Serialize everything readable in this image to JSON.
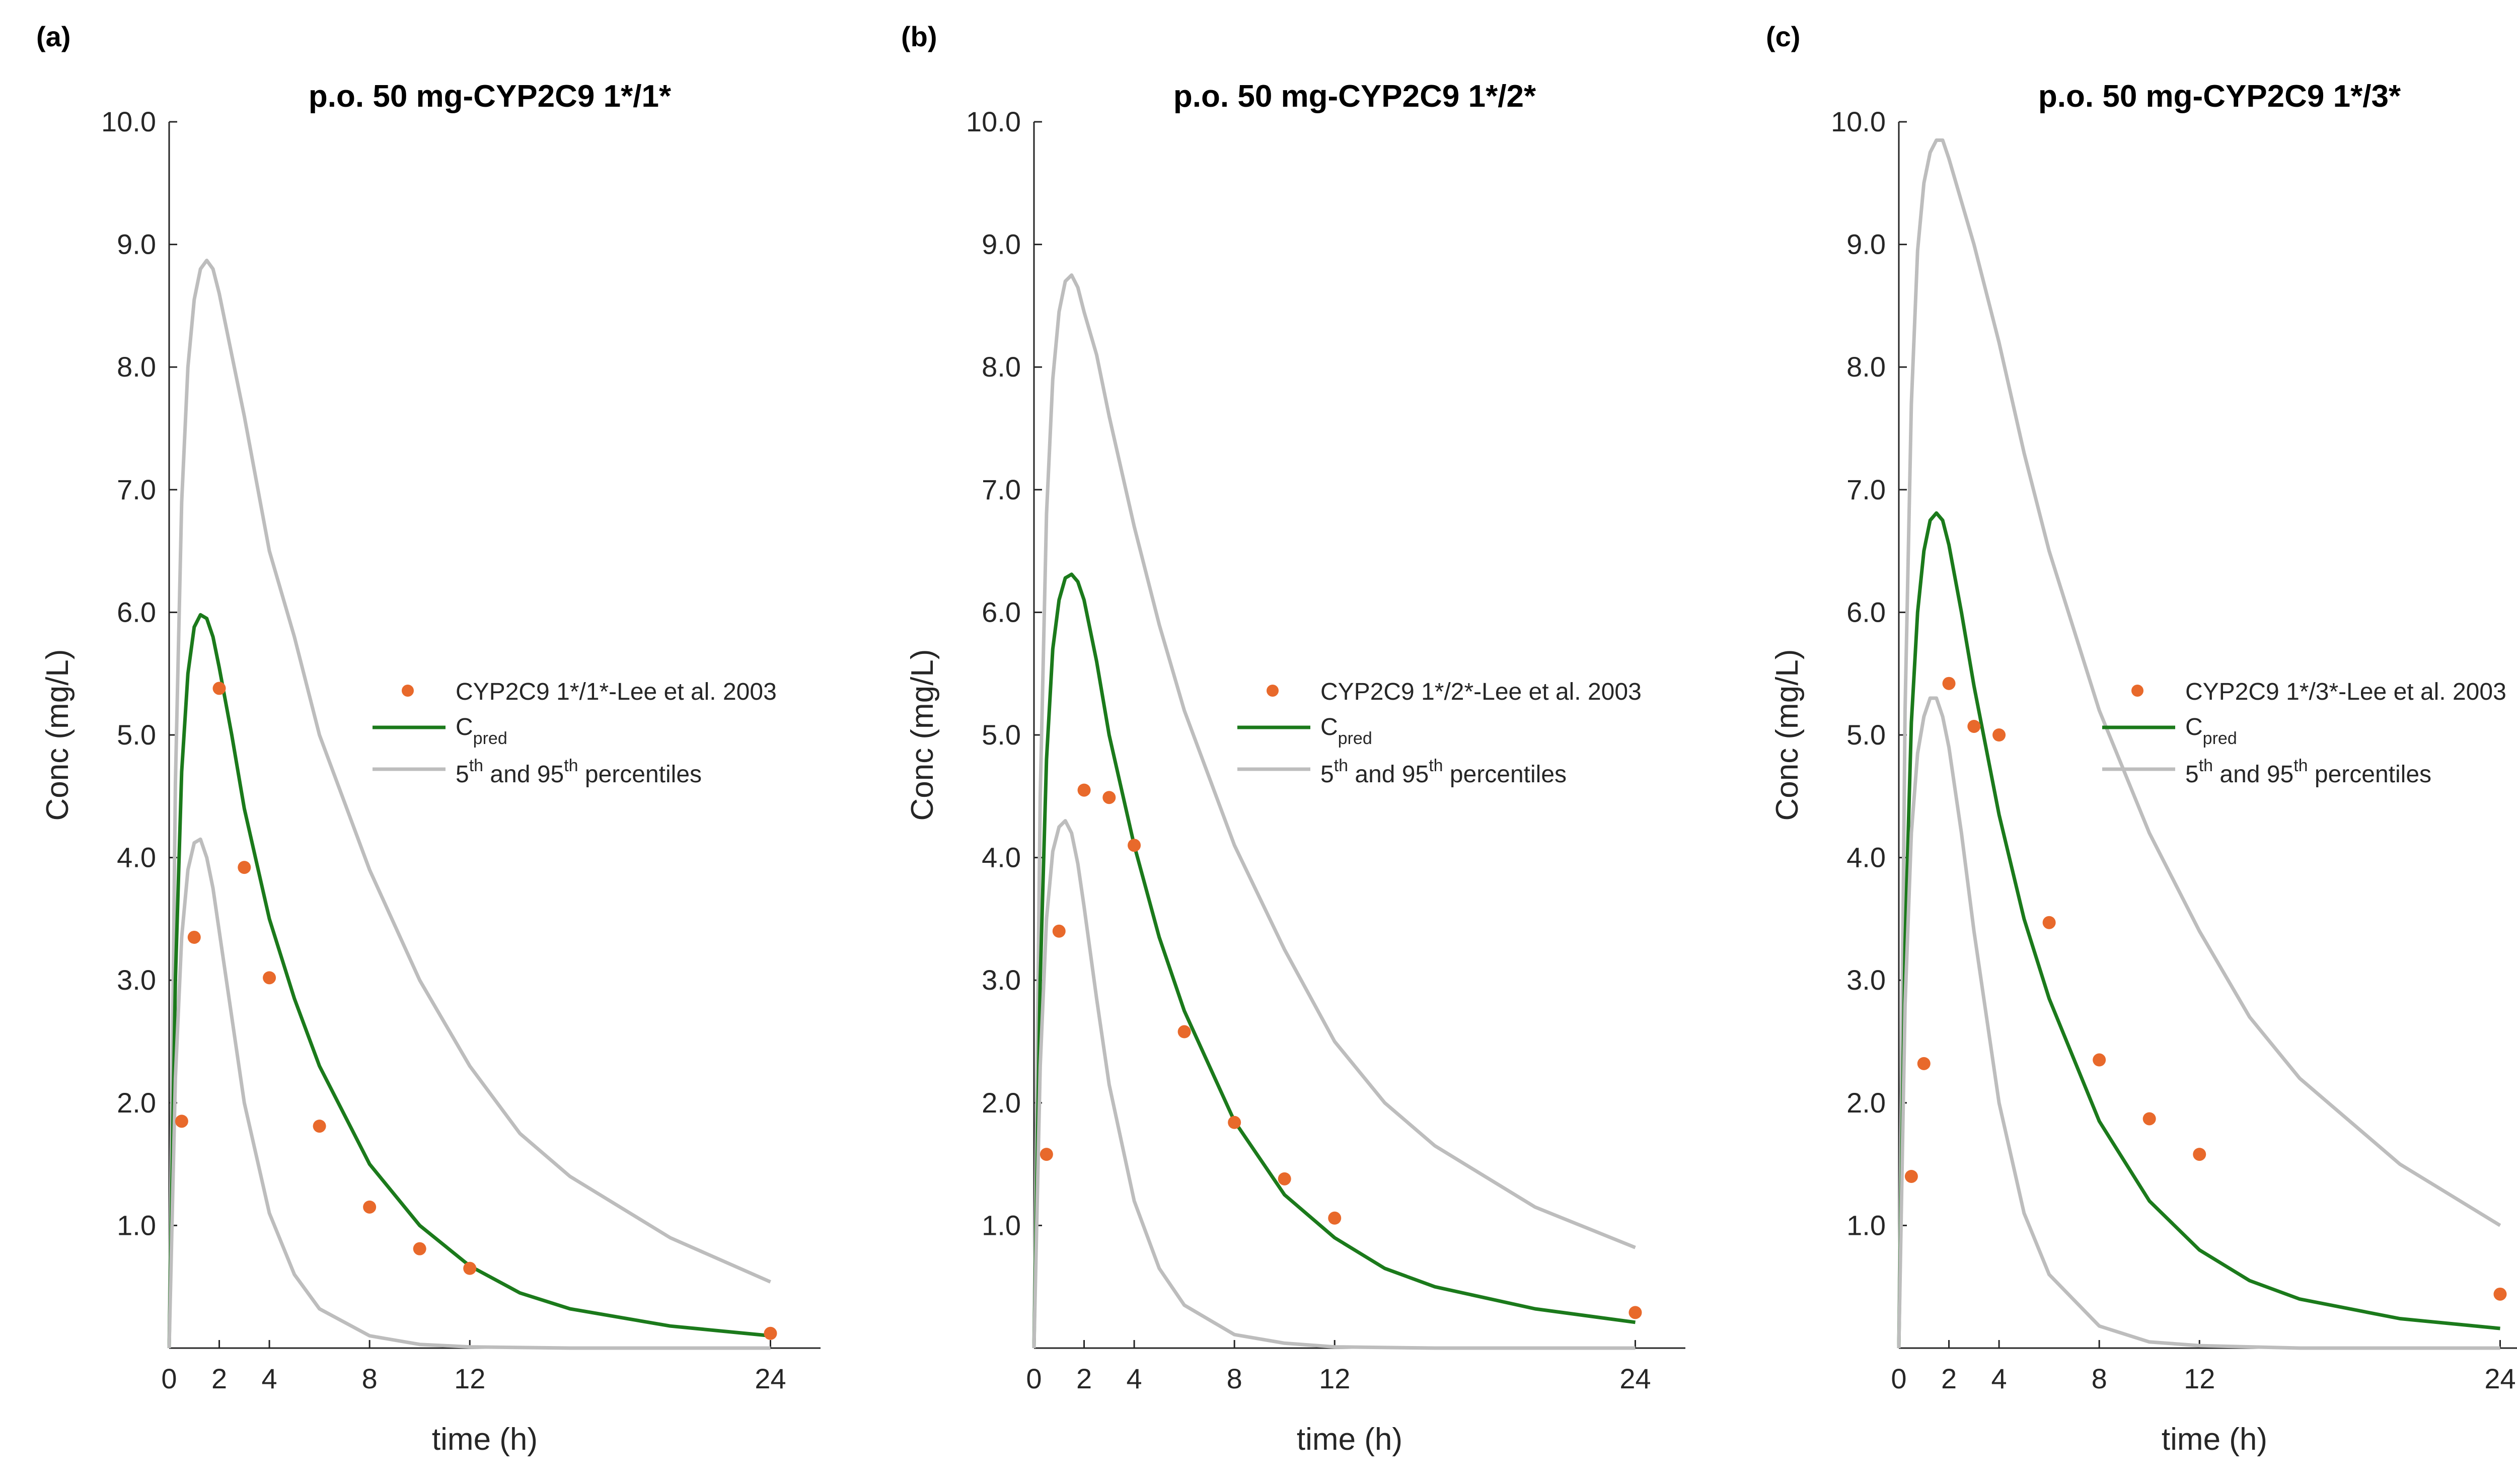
{
  "colors": {
    "pred": "#1b7a1b",
    "percentile": "#bdbdbd",
    "observed": "#e8692b",
    "axis": "#262626"
  },
  "chart_data": [
    {
      "type": "line",
      "panel_label": "(a)",
      "title": "p.o. 50 mg-CYP2C9 1*/1*",
      "xlabel": "time (h)",
      "ylabel": "Conc (mg/L)",
      "xlim": [
        0,
        26
      ],
      "ylim": [
        0,
        10
      ],
      "xticks": [
        0,
        2,
        4,
        8,
        12,
        24
      ],
      "yticks": [
        "1.0",
        "2.0",
        "3.0",
        "4.0",
        "5.0",
        "6.0",
        "7.0",
        "8.0",
        "9.0",
        "10.0"
      ],
      "grid": false,
      "legend_position": "right-middle",
      "legend": {
        "observed": "CYP2C9 1*/1*-Lee et al. 2003",
        "pred_main": "C",
        "pred_sub": "pred",
        "pct_a": "5",
        "pct_sup_a": "th",
        "pct_b": " and 95",
        "pct_sup_b": "th",
        "pct_c": " percentiles"
      },
      "series": [
        {
          "role": "p95",
          "x": [
            0,
            0.25,
            0.5,
            0.75,
            1,
            1.25,
            1.5,
            1.75,
            2,
            2.5,
            3,
            4,
            5,
            6,
            8,
            10,
            12,
            14,
            16,
            20,
            24
          ],
          "y": [
            0,
            4.6,
            6.9,
            8.0,
            8.55,
            8.8,
            8.87,
            8.8,
            8.6,
            8.1,
            7.6,
            6.5,
            5.8,
            5.0,
            3.9,
            3.0,
            2.3,
            1.75,
            1.4,
            0.9,
            0.54
          ]
        },
        {
          "role": "pred",
          "x": [
            0,
            0.25,
            0.5,
            0.75,
            1,
            1.25,
            1.5,
            1.75,
            2,
            2.5,
            3,
            4,
            5,
            6,
            8,
            10,
            12,
            14,
            16,
            20,
            24
          ],
          "y": [
            0,
            3.0,
            4.7,
            5.5,
            5.88,
            5.98,
            5.95,
            5.8,
            5.55,
            5.0,
            4.4,
            3.5,
            2.85,
            2.3,
            1.5,
            1.0,
            0.67,
            0.45,
            0.32,
            0.18,
            0.1
          ]
        },
        {
          "role": "p5",
          "x": [
            0,
            0.25,
            0.5,
            0.75,
            1,
            1.25,
            1.5,
            1.75,
            2,
            2.5,
            3,
            4,
            5,
            6,
            8,
            10,
            12,
            16,
            20,
            24
          ],
          "y": [
            0,
            2.2,
            3.35,
            3.9,
            4.12,
            4.15,
            4.0,
            3.75,
            3.4,
            2.7,
            2.0,
            1.1,
            0.6,
            0.32,
            0.1,
            0.03,
            0.01,
            0.0,
            0.0,
            0.0
          ]
        },
        {
          "role": "observed",
          "x": [
            0.5,
            1,
            2,
            3,
            4,
            6,
            8,
            10,
            12,
            24
          ],
          "y": [
            1.85,
            3.35,
            5.38,
            3.92,
            3.02,
            1.81,
            1.15,
            0.81,
            0.65,
            0.12
          ]
        }
      ]
    },
    {
      "type": "line",
      "panel_label": "(b)",
      "title": "p.o. 50 mg-CYP2C9 1*/2*",
      "xlabel": "time (h)",
      "ylabel": "Conc (mg/L)",
      "xlim": [
        0,
        26
      ],
      "ylim": [
        0,
        10
      ],
      "xticks": [
        0,
        2,
        4,
        8,
        12,
        24
      ],
      "yticks": [
        "1.0",
        "2.0",
        "3.0",
        "4.0",
        "5.0",
        "6.0",
        "7.0",
        "8.0",
        "9.0",
        "10.0"
      ],
      "grid": false,
      "legend_position": "right-middle",
      "legend": {
        "observed": "CYP2C9 1*/2*-Lee et al. 2003",
        "pred_main": "C",
        "pred_sub": "pred",
        "pct_a": "5",
        "pct_sup_a": "th",
        "pct_b": " and 95",
        "pct_sup_b": "th",
        "pct_c": " percentiles"
      },
      "series": [
        {
          "role": "p95",
          "x": [
            0,
            0.25,
            0.5,
            0.75,
            1,
            1.25,
            1.5,
            1.75,
            2,
            2.5,
            3,
            4,
            5,
            6,
            8,
            10,
            12,
            14,
            16,
            20,
            24
          ],
          "y": [
            0,
            4.5,
            6.8,
            7.9,
            8.45,
            8.7,
            8.75,
            8.65,
            8.45,
            8.1,
            7.6,
            6.7,
            5.9,
            5.2,
            4.1,
            3.25,
            2.5,
            2.0,
            1.65,
            1.15,
            0.82
          ]
        },
        {
          "role": "pred",
          "x": [
            0,
            0.25,
            0.5,
            0.75,
            1,
            1.25,
            1.5,
            1.75,
            2,
            2.5,
            3,
            4,
            5,
            6,
            8,
            10,
            12,
            14,
            16,
            20,
            24
          ],
          "y": [
            0,
            3.0,
            4.8,
            5.7,
            6.1,
            6.28,
            6.31,
            6.25,
            6.1,
            5.6,
            5.0,
            4.1,
            3.35,
            2.75,
            1.85,
            1.25,
            0.9,
            0.65,
            0.5,
            0.32,
            0.21
          ]
        },
        {
          "role": "p5",
          "x": [
            0,
            0.25,
            0.5,
            0.75,
            1,
            1.25,
            1.5,
            1.75,
            2,
            2.5,
            3,
            4,
            5,
            6,
            8,
            10,
            12,
            16,
            20,
            24
          ],
          "y": [
            0,
            2.3,
            3.5,
            4.05,
            4.25,
            4.3,
            4.2,
            3.95,
            3.6,
            2.85,
            2.15,
            1.2,
            0.65,
            0.35,
            0.11,
            0.04,
            0.01,
            0.0,
            0.0,
            0.0
          ]
        },
        {
          "role": "observed",
          "x": [
            0.5,
            1,
            2,
            3,
            4,
            6,
            8,
            10,
            12,
            24
          ],
          "y": [
            1.58,
            3.4,
            4.55,
            4.49,
            4.1,
            2.58,
            1.84,
            1.38,
            1.06,
            0.29
          ]
        }
      ]
    },
    {
      "type": "line",
      "panel_label": "(c)",
      "title": "p.o. 50 mg-CYP2C9 1*/3*",
      "xlabel": "time (h)",
      "ylabel": "Conc (mg/L)",
      "xlim": [
        0,
        26
      ],
      "ylim": [
        0,
        10
      ],
      "xticks": [
        0,
        2,
        4,
        8,
        12,
        24
      ],
      "yticks": [
        "1.0",
        "2.0",
        "3.0",
        "4.0",
        "5.0",
        "6.0",
        "7.0",
        "8.0",
        "9.0",
        "10.0"
      ],
      "grid": false,
      "legend_position": "right-middle",
      "legend": {
        "observed": "CYP2C9 1*/3*-Lee et al. 2003",
        "pred_main": "C",
        "pred_sub": "pred",
        "pct_a": "5",
        "pct_sup_a": "th",
        "pct_b": " and 95",
        "pct_sup_b": "th",
        "pct_c": " percentiles"
      },
      "series": [
        {
          "role": "p95",
          "x": [
            0,
            0.25,
            0.5,
            0.75,
            1,
            1.25,
            1.5,
            1.75,
            2,
            2.5,
            3,
            4,
            5,
            6,
            8,
            10,
            12,
            14,
            16,
            20,
            24
          ],
          "y": [
            0,
            5.2,
            7.7,
            8.95,
            9.5,
            9.75,
            9.85,
            9.85,
            9.7,
            9.35,
            9.0,
            8.2,
            7.3,
            6.5,
            5.2,
            4.2,
            3.4,
            2.7,
            2.2,
            1.5,
            1.0
          ]
        },
        {
          "role": "pred",
          "x": [
            0,
            0.25,
            0.5,
            0.75,
            1,
            1.25,
            1.5,
            1.75,
            2,
            2.5,
            3,
            4,
            5,
            6,
            8,
            10,
            12,
            14,
            16,
            20,
            24
          ],
          "y": [
            0,
            3.3,
            5.1,
            6.0,
            6.5,
            6.75,
            6.81,
            6.75,
            6.55,
            6.0,
            5.4,
            4.35,
            3.5,
            2.85,
            1.85,
            1.2,
            0.8,
            0.55,
            0.4,
            0.24,
            0.16
          ]
        },
        {
          "role": "p5",
          "x": [
            0,
            0.25,
            0.5,
            0.75,
            1,
            1.25,
            1.5,
            1.75,
            2,
            2.5,
            3,
            4,
            5,
            6,
            8,
            10,
            12,
            16,
            20,
            24
          ],
          "y": [
            0,
            2.8,
            4.2,
            4.85,
            5.15,
            5.3,
            5.3,
            5.15,
            4.9,
            4.2,
            3.4,
            2.0,
            1.1,
            0.6,
            0.18,
            0.05,
            0.02,
            0.0,
            0.0,
            0.0
          ]
        },
        {
          "role": "observed",
          "x": [
            0.5,
            1,
            2,
            3,
            4,
            6,
            8,
            10,
            12,
            24
          ],
          "y": [
            1.4,
            2.32,
            5.42,
            5.07,
            5.0,
            3.47,
            2.35,
            1.87,
            1.58,
            0.44
          ]
        }
      ]
    }
  ]
}
